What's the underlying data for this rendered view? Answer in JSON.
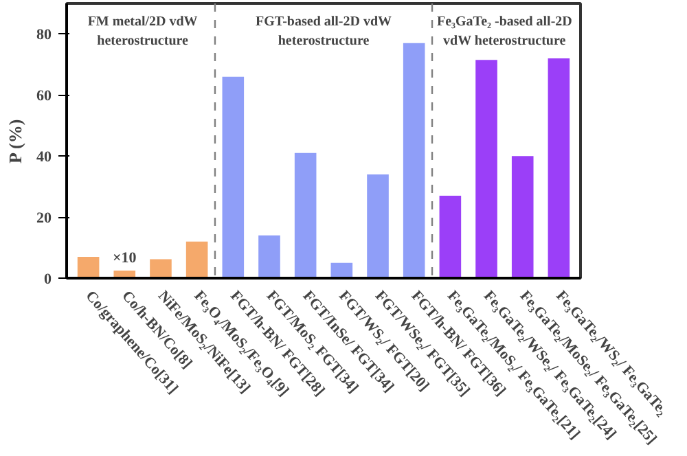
{
  "chart_data": {
    "type": "bar",
    "ylabel": "P (%)",
    "categories": [
      "Co/graphene/Co[31]",
      "Co/h-BN/Co[8]",
      "NiFe/MoS₂/NiFe[13]",
      "Fe₃O₄/MoS₂/Fe₃O₄[9]",
      "FGT/h-BN/ FGT[28]",
      "FGT/MoS₂ FGT[34]",
      "FGT/InSe/ FGT[34]",
      "FGT/WS₂/ FGT[20]",
      "FGT/WSe₂/ FGT[35]",
      "FGT/h-BN/ FGT[36]",
      "Fe₃GaTe₂/MoS₂/ Fe₃GaTe₂[21]",
      "Fe₃GaTe₂/WSe₂/ Fe₃GaTe₂[24]",
      "Fe₃GaTe₂/MoSe₂/ Fe₃GaTe₂[25]",
      "Fe₃GaTe₂/WS₂/ Fe₃GaTe₂"
    ],
    "values": [
      7.0,
      2.5,
      6.2,
      12.0,
      66,
      14,
      41,
      5,
      34,
      77,
      27,
      71.5,
      40,
      72
    ],
    "colors": [
      "#f5a96b",
      "#f5a96b",
      "#f5a96b",
      "#f5a96b",
      "#8f9ef8",
      "#8f9ef8",
      "#8f9ef8",
      "#8f9ef8",
      "#8f9ef8",
      "#8f9ef8",
      "#9b3ff8",
      "#9b3ff8",
      "#9b3ff8",
      "#9b3ff8"
    ],
    "ylim": [
      0,
      90
    ],
    "yticks": [
      0,
      20,
      40,
      60,
      80
    ],
    "grid": false,
    "annotations": [
      {
        "text": "×10",
        "x": "Co/h-BN/Co[8]",
        "y": 2.5
      },
      "FM metal/2D vdW\nheterostructure",
      "FGT-based all-2D vdW\nheterostructure",
      "Fe₃GaTe₂ -based all-2D\nvdW heterostructure"
    ]
  }
}
